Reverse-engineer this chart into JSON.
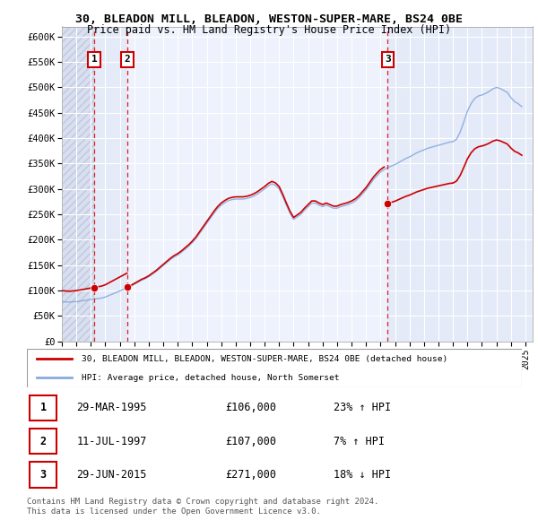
{
  "title1": "30, BLEADON MILL, BLEADON, WESTON-SUPER-MARE, BS24 0BE",
  "title2": "Price paid vs. HM Land Registry's House Price Index (HPI)",
  "ylim": [
    0,
    620000
  ],
  "yticks": [
    0,
    50000,
    100000,
    150000,
    200000,
    250000,
    300000,
    350000,
    400000,
    450000,
    500000,
    550000,
    600000
  ],
  "ytick_labels": [
    "£0",
    "£50K",
    "£100K",
    "£150K",
    "£200K",
    "£250K",
    "£300K",
    "£350K",
    "£400K",
    "£450K",
    "£500K",
    "£550K",
    "£600K"
  ],
  "xlim_start": 1993.0,
  "xlim_end": 2025.5,
  "xticks": [
    1993,
    1994,
    1995,
    1996,
    1997,
    1998,
    1999,
    2000,
    2001,
    2002,
    2003,
    2004,
    2005,
    2006,
    2007,
    2008,
    2009,
    2010,
    2011,
    2012,
    2013,
    2014,
    2015,
    2016,
    2017,
    2018,
    2019,
    2020,
    2021,
    2022,
    2023,
    2024,
    2025
  ],
  "background_color": "#eef2fc",
  "hatch_region_color": "#d8dff0",
  "shade_color": "#e4eaf8",
  "grid_color": "#ffffff",
  "sale_color": "#cc0000",
  "hpi_color": "#88aadd",
  "transaction_lines_color": "#dd2222",
  "transactions": [
    {
      "id": 1,
      "year": 1995.24,
      "price": 106000
    },
    {
      "id": 2,
      "year": 1997.53,
      "price": 107000
    },
    {
      "id": 3,
      "year": 2015.49,
      "price": 271000
    }
  ],
  "hpi_data_x": [
    1993.0,
    1993.25,
    1993.5,
    1993.75,
    1994.0,
    1994.25,
    1994.5,
    1994.75,
    1995.0,
    1995.25,
    1995.5,
    1995.75,
    1996.0,
    1996.25,
    1996.5,
    1996.75,
    1997.0,
    1997.25,
    1997.5,
    1997.75,
    1998.0,
    1998.25,
    1998.5,
    1998.75,
    1999.0,
    1999.25,
    1999.5,
    1999.75,
    2000.0,
    2000.25,
    2000.5,
    2000.75,
    2001.0,
    2001.25,
    2001.5,
    2001.75,
    2002.0,
    2002.25,
    2002.5,
    2002.75,
    2003.0,
    2003.25,
    2003.5,
    2003.75,
    2004.0,
    2004.25,
    2004.5,
    2004.75,
    2005.0,
    2005.25,
    2005.5,
    2005.75,
    2006.0,
    2006.25,
    2006.5,
    2006.75,
    2007.0,
    2007.25,
    2007.5,
    2007.75,
    2008.0,
    2008.25,
    2008.5,
    2008.75,
    2009.0,
    2009.25,
    2009.5,
    2009.75,
    2010.0,
    2010.25,
    2010.5,
    2010.75,
    2011.0,
    2011.25,
    2011.5,
    2011.75,
    2012.0,
    2012.25,
    2012.5,
    2012.75,
    2013.0,
    2013.25,
    2013.5,
    2013.75,
    2014.0,
    2014.25,
    2014.5,
    2014.75,
    2015.0,
    2015.25,
    2015.5,
    2015.75,
    2016.0,
    2016.25,
    2016.5,
    2016.75,
    2017.0,
    2017.25,
    2017.5,
    2017.75,
    2018.0,
    2018.25,
    2018.5,
    2018.75,
    2019.0,
    2019.25,
    2019.5,
    2019.75,
    2020.0,
    2020.25,
    2020.5,
    2020.75,
    2021.0,
    2021.25,
    2021.5,
    2021.75,
    2022.0,
    2022.25,
    2022.5,
    2022.75,
    2023.0,
    2023.25,
    2023.5,
    2023.75,
    2024.0,
    2024.25,
    2024.5,
    2024.75
  ],
  "hpi_data_y": [
    78000,
    77500,
    77000,
    77500,
    78000,
    79000,
    80000,
    81000,
    82000,
    83000,
    84000,
    85000,
    87000,
    90000,
    93000,
    96000,
    99000,
    102000,
    105000,
    108000,
    112000,
    116000,
    120000,
    123000,
    127000,
    132000,
    137000,
    143000,
    149000,
    155000,
    161000,
    166000,
    170000,
    175000,
    181000,
    187000,
    194000,
    202000,
    212000,
    222000,
    232000,
    242000,
    252000,
    261000,
    268000,
    273000,
    277000,
    279000,
    280000,
    280000,
    280000,
    281000,
    283000,
    286000,
    290000,
    295000,
    300000,
    306000,
    310000,
    307000,
    300000,
    285000,
    268000,
    252000,
    240000,
    245000,
    250000,
    258000,
    265000,
    272000,
    272000,
    268000,
    265000,
    268000,
    265000,
    262000,
    262000,
    265000,
    267000,
    269000,
    272000,
    276000,
    282000,
    290000,
    298000,
    308000,
    318000,
    326000,
    333000,
    338000,
    342000,
    345000,
    348000,
    352000,
    356000,
    360000,
    363000,
    367000,
    371000,
    374000,
    377000,
    380000,
    382000,
    384000,
    386000,
    388000,
    390000,
    392000,
    393000,
    398000,
    412000,
    432000,
    453000,
    468000,
    478000,
    483000,
    485000,
    488000,
    492000,
    497000,
    500000,
    498000,
    494000,
    490000,
    480000,
    472000,
    468000,
    462000
  ],
  "legend_sale": "30, BLEADON MILL, BLEADON, WESTON-SUPER-MARE, BS24 0BE (detached house)",
  "legend_hpi": "HPI: Average price, detached house, North Somerset",
  "footnote": "Contains HM Land Registry data © Crown copyright and database right 2024.\nThis data is licensed under the Open Government Licence v3.0.",
  "table_rows": [
    {
      "id": 1,
      "date": "29-MAR-1995",
      "price": "£106,000",
      "pct": "23% ↑ HPI"
    },
    {
      "id": 2,
      "date": "11-JUL-1997",
      "price": "£107,000",
      "pct": "7% ↑ HPI"
    },
    {
      "id": 3,
      "date": "29-JUN-2015",
      "price": "£271,000",
      "pct": "18% ↓ HPI"
    }
  ]
}
